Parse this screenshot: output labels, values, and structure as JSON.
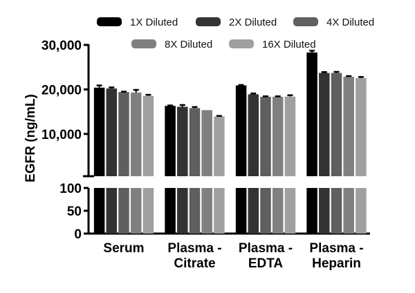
{
  "chart_data": {
    "type": "bar",
    "title": "",
    "ylabel": "EGFR (ng/mL)",
    "xlabel": "",
    "categories": [
      "Serum",
      "Plasma -\nCitrate",
      "Plasma -\nEDTA",
      "Plasma -\nHeparin"
    ],
    "y_axis_broken": true,
    "ylim_lower": [
      0,
      100
    ],
    "ylim_upper": [
      500,
      30000
    ],
    "yticks_lower": [
      "0",
      "50",
      "100"
    ],
    "yticks_upper": [
      "10,000",
      "20,000",
      "30,000"
    ],
    "legend_position": "top",
    "grid": false,
    "series": [
      {
        "name": "1X Diluted",
        "color": "#000000",
        "values": [
          20400,
          16300,
          20900,
          28300
        ],
        "errors": [
          500,
          100,
          100,
          400
        ]
      },
      {
        "name": "2X Diluted",
        "color": "#333333",
        "values": [
          20200,
          16100,
          18900,
          23700
        ],
        "errors": [
          250,
          400,
          200,
          200
        ]
      },
      {
        "name": "4X Diluted",
        "color": "#5f5f5f",
        "values": [
          19400,
          15800,
          18350,
          23700
        ],
        "errors": [
          100,
          250,
          100,
          250
        ]
      },
      {
        "name": "8X Diluted",
        "color": "#808080",
        "values": [
          19300,
          15350,
          18350,
          22850
        ],
        "errors": [
          600,
          0,
          100,
          150
        ]
      },
      {
        "name": "16X Diluted",
        "color": "#a0a0a0",
        "values": [
          18550,
          13950,
          18400,
          22550
        ],
        "errors": [
          250,
          100,
          300,
          250
        ]
      }
    ]
  }
}
